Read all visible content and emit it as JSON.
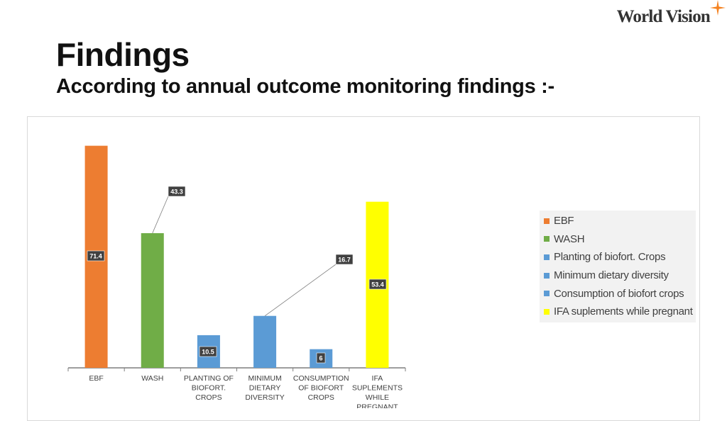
{
  "logo": {
    "text": "World Vision",
    "star_color": "#f58220"
  },
  "header": {
    "title": "Findings",
    "subtitle": "According to annual outcome monitoring findings :-"
  },
  "chart_data": {
    "type": "bar",
    "title": "",
    "xlabel": "",
    "ylabel": "",
    "categories": [
      "EBF",
      "WASH",
      "PLANTING OF BIOFORT. CROPS",
      "MINIMUM DIETARY DIVERSITY",
      "CONSUMPTION OF BIOFORT CROPS",
      "IFA SUPLEMENTS WHILE PREGNANT"
    ],
    "category_label_lines": [
      [
        "EBF"
      ],
      [
        "WASH"
      ],
      [
        "PLANTING OF",
        "BIOFORT.",
        "CROPS"
      ],
      [
        "MINIMUM",
        "DIETARY",
        "DIVERSITY"
      ],
      [
        "CONSUMPTION",
        "OF BIOFORT",
        "CROPS"
      ],
      [
        "IFA",
        "SUPLEMENTS",
        "WHILE",
        "PREGNANT"
      ]
    ],
    "values": [
      71.4,
      43.3,
      10.5,
      16.7,
      6,
      53.4
    ],
    "data_labels": [
      "71.4",
      "43.3",
      "10.5",
      "16.7",
      "6",
      "53.4"
    ],
    "colors": [
      "#ed7d31",
      "#70ad47",
      "#5b9bd5",
      "#5b9bd5",
      "#5b9bd5",
      "#ffff00"
    ],
    "ylim": [
      0,
      72
    ],
    "grid": false,
    "legend_position": "right",
    "legend": [
      {
        "name": "EBF",
        "color": "#ed7d31"
      },
      {
        "name": "WASH",
        "color": "#70ad47"
      },
      {
        "name": "Planting of biofort. Crops",
        "color": "#5b9bd5"
      },
      {
        "name": "Minimum dietary diversity",
        "color": "#5b9bd5"
      },
      {
        "name": "Consumption of biofort crops",
        "color": "#5b9bd5"
      },
      {
        "name": "IFA suplements while pregnant",
        "color": "#ffff00"
      }
    ]
  }
}
